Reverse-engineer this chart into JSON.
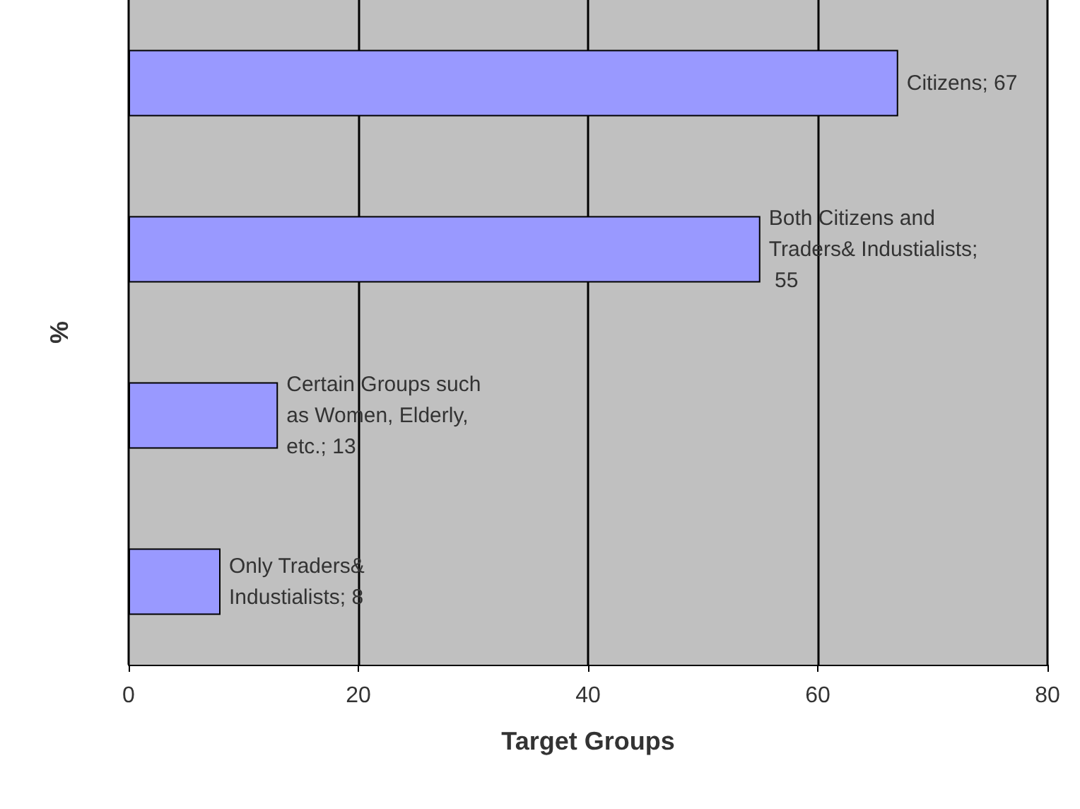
{
  "chart_data": {
    "type": "bar",
    "orientation": "horizontal",
    "xlabel": "Target Groups",
    "ylabel": "%",
    "categories": [
      null,
      null,
      null,
      null
    ],
    "values": [
      67,
      55,
      13,
      8
    ],
    "color": "#9999ff",
    "value_labels": [
      "Citizens; 67",
      "Both Citizens and Traders& Industialists; 55",
      "Certain Groups such as Women, Elderly, etc.; 13",
      "Only Traders& Industialists; 8"
    ],
    "xlim": [
      0,
      80
    ],
    "xticks": [
      0,
      20,
      40,
      60,
      80
    ],
    "grid": "x"
  }
}
